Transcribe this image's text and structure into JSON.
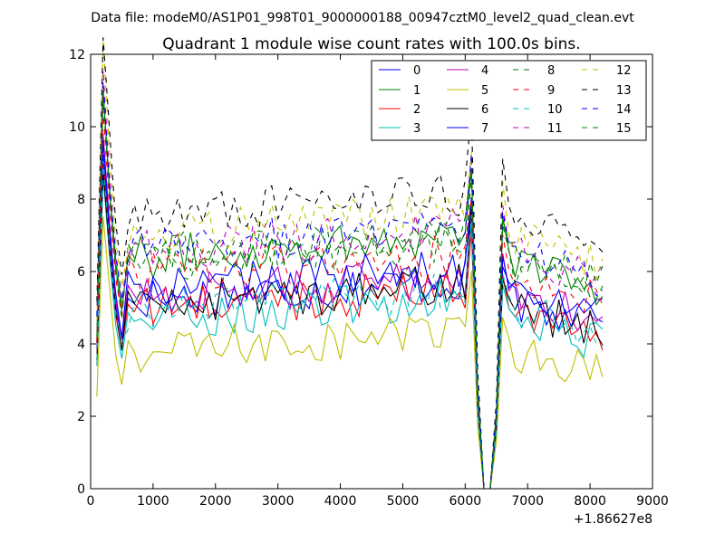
{
  "chart_data": {
    "type": "line",
    "suptitle": "Data file: modeM0/AS1P01_998T01_9000000188_00947cztM0_level2_quad_clean.evt",
    "title": "Quadrant 1 module wise count rates with 100.0s bins.",
    "xlabel": "",
    "ylabel": "",
    "x_offset_label": "+1.86627e8",
    "xlim": [
      0,
      9000
    ],
    "ylim": [
      0,
      12
    ],
    "xticks": [
      "0",
      "1000",
      "2000",
      "3000",
      "4000",
      "5000",
      "6000",
      "7000",
      "8000",
      "9000"
    ],
    "yticks": [
      "0",
      "2",
      "4",
      "6",
      "8",
      "10",
      "12"
    ],
    "grid": false,
    "legend_position": "top-right",
    "legend_columns": 4,
    "bin_seconds": 100.0,
    "x_start": 100,
    "x_step": 100,
    "series": [
      {
        "name": "0",
        "color": "#0000ff",
        "style": "solid",
        "level": 5.2,
        "rise": 0.5
      },
      {
        "name": "1",
        "color": "#008000",
        "style": "solid",
        "level": 6.3,
        "rise": 0.7
      },
      {
        "name": "2",
        "color": "#ff0000",
        "style": "solid",
        "level": 4.9,
        "rise": 0.6
      },
      {
        "name": "3",
        "color": "#00bfbf",
        "style": "solid",
        "level": 4.6,
        "rise": 0.6
      },
      {
        "name": "4",
        "color": "#bf00bf",
        "style": "solid",
        "level": 5.3,
        "rise": 0.5
      },
      {
        "name": "5",
        "color": "#bfbf00",
        "style": "solid",
        "level": 3.7,
        "rise": 0.6
      },
      {
        "name": "6",
        "color": "#000000",
        "style": "solid",
        "level": 5.0,
        "rise": 0.6
      },
      {
        "name": "7",
        "color": "#0000ff",
        "style": "solid",
        "level": 5.5,
        "rise": 0.5
      },
      {
        "name": "8",
        "color": "#008000",
        "style": "dashed",
        "level": 6.2,
        "rise": 0.6
      },
      {
        "name": "9",
        "color": "#ff0000",
        "style": "dashed",
        "level": 5.9,
        "rise": 0.5
      },
      {
        "name": "10",
        "color": "#00bfbf",
        "style": "dashed",
        "level": 4.9,
        "rise": 0.5
      },
      {
        "name": "11",
        "color": "#bf00bf",
        "style": "dashed",
        "level": 6.5,
        "rise": 0.6
      },
      {
        "name": "12",
        "color": "#bfbf00",
        "style": "dashed",
        "level": 7.0,
        "rise": 0.6
      },
      {
        "name": "13",
        "color": "#000000",
        "style": "dashed",
        "level": 7.5,
        "rise": 0.6
      },
      {
        "name": "14",
        "color": "#0000ff",
        "style": "dashed",
        "level": 6.6,
        "rise": 0.6
      },
      {
        "name": "15",
        "color": "#008000",
        "style": "dashed",
        "level": 6.4,
        "rise": 0.6
      }
    ]
  }
}
